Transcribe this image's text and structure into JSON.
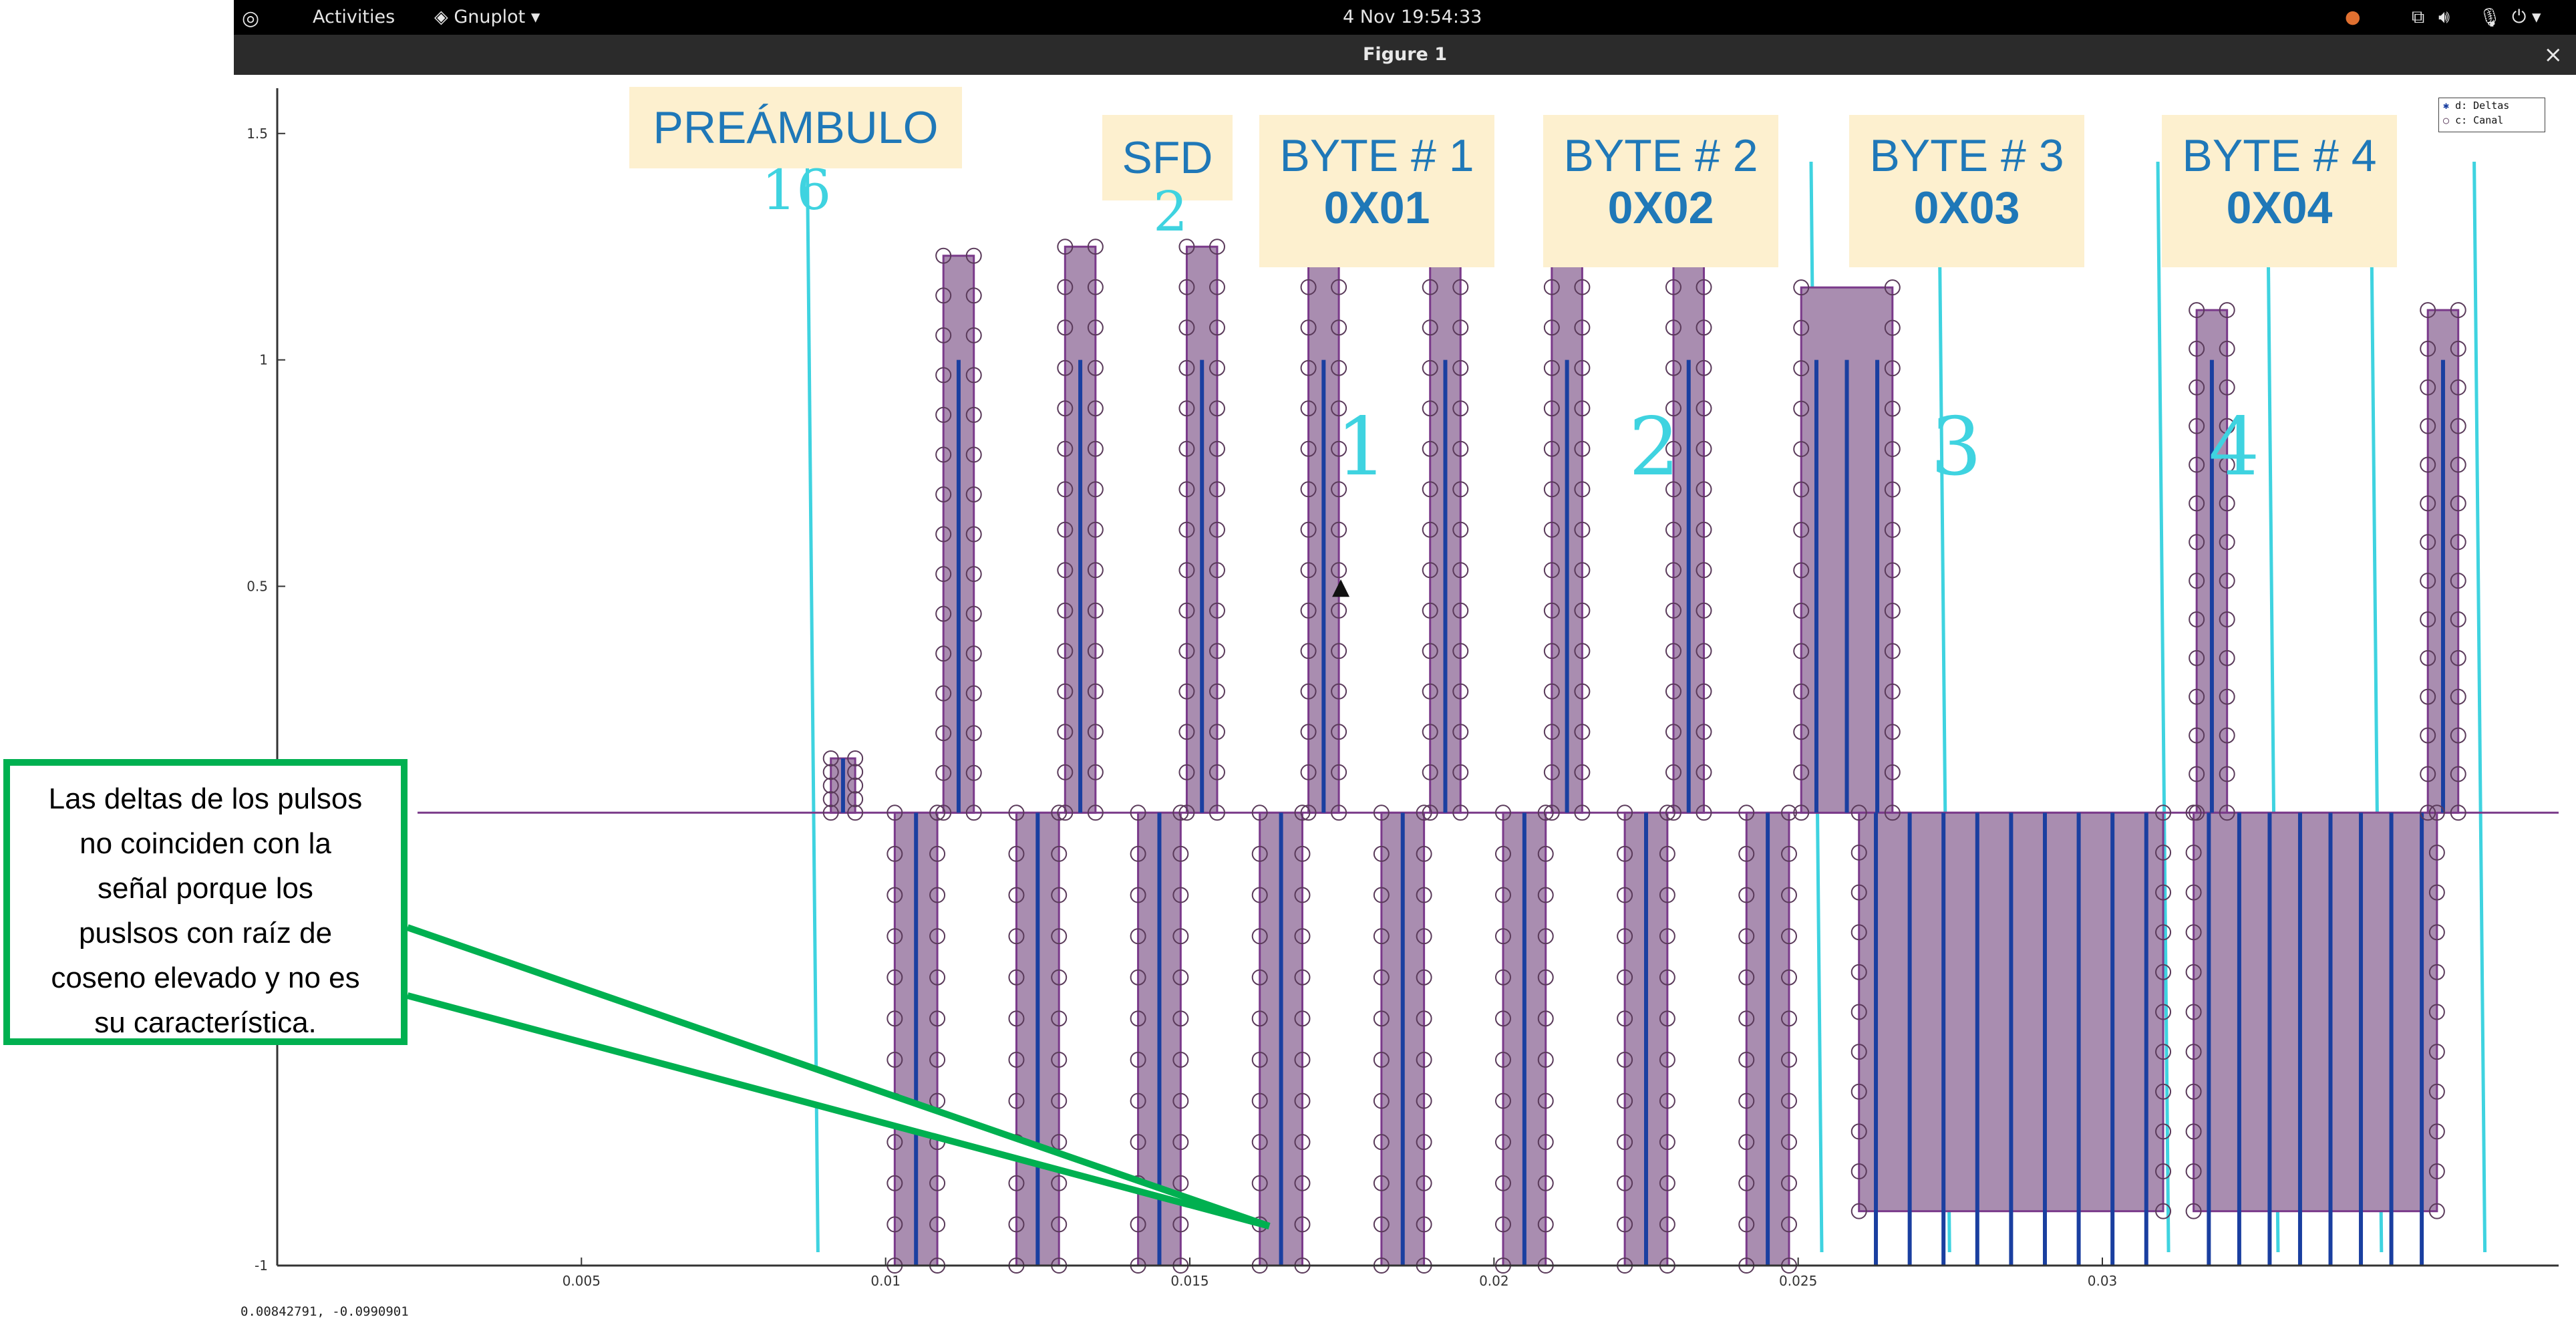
{
  "topbar": {
    "activities": "Activities",
    "app_menu": "Gnuplot",
    "clock": "4 Nov  19:54:33"
  },
  "window": {
    "title": "Figure 1",
    "close": "×"
  },
  "annotations": {
    "preamble": "PREÁMBULO",
    "preamble_count": "16",
    "sfd": "SFD",
    "sfd_count": "2",
    "bytes": [
      {
        "name": "BYTE # 1",
        "value": "0X01",
        "hand": "1"
      },
      {
        "name": "BYTE # 2",
        "value": "0X02",
        "hand": "2"
      },
      {
        "name": "BYTE # 3",
        "value": "0X03",
        "hand": "3"
      },
      {
        "name": "BYTE # 4",
        "value": "0X04",
        "hand": "4"
      }
    ]
  },
  "callout": {
    "text_lines": [
      "Las deltas de los pulsos",
      "no coinciden con la",
      "señal porque los",
      "puslsos con raíz de",
      "coseno elevado y no es",
      "su característica."
    ]
  },
  "legend": {
    "entries": [
      "d: Deltas",
      "c: Canal"
    ]
  },
  "status_coords": "0.00842791, -0.0990901",
  "colors": {
    "fill": "#a98db0",
    "signal": "#7a3a8a",
    "delta": "#1a3fa0",
    "marker": "#5a3a5a",
    "guide": "#3fd3e0",
    "label_bg": "#fdf0cf",
    "label_text": "#1f78b8",
    "callout_border": "#00b050"
  },
  "chart_data": {
    "type": "line",
    "title": "",
    "xlabel": "",
    "ylabel": "",
    "xlim": [
      0.0,
      0.0375
    ],
    "ylim": [
      -1.0,
      1.6
    ],
    "xticks": [
      0.005,
      0.01,
      0.015,
      0.02,
      0.025,
      0.03
    ],
    "xtick_labels": [
      "0.005",
      "0.01",
      "0.015",
      "0.02",
      "0.025",
      "0.03"
    ],
    "yticks": [
      -1,
      0.5,
      1,
      1.5
    ],
    "ytick_labels": [
      "-1",
      "0.5",
      "1",
      "1.5"
    ],
    "pulses": [
      {
        "x": 0.0093,
        "y": 0.12,
        "w": 0.0004
      },
      {
        "x": 0.0105,
        "y": -1.0,
        "w": 0.0007
      },
      {
        "x": 0.0112,
        "y": 1.23,
        "w": 0.0005
      },
      {
        "x": 0.0125,
        "y": -1.0,
        "w": 0.0007
      },
      {
        "x": 0.0132,
        "y": 1.25,
        "w": 0.0005
      },
      {
        "x": 0.0145,
        "y": -1.0,
        "w": 0.0007
      },
      {
        "x": 0.0152,
        "y": 1.25,
        "w": 0.0005
      },
      {
        "x": 0.0165,
        "y": -1.0,
        "w": 0.0007
      },
      {
        "x": 0.0172,
        "y": 1.25,
        "w": 0.0005
      },
      {
        "x": 0.0185,
        "y": -1.0,
        "w": 0.0007
      },
      {
        "x": 0.0192,
        "y": 1.25,
        "w": 0.0005
      },
      {
        "x": 0.0205,
        "y": -1.0,
        "w": 0.0007
      },
      {
        "x": 0.0212,
        "y": 1.25,
        "w": 0.0005
      },
      {
        "x": 0.0225,
        "y": -1.0,
        "w": 0.0007
      },
      {
        "x": 0.0232,
        "y": 1.25,
        "w": 0.0005
      },
      {
        "x": 0.0245,
        "y": -1.0,
        "w": 0.0007
      },
      {
        "x": 0.0258,
        "y": 1.16,
        "w": 0.0015
      },
      {
        "x": 0.0285,
        "y": -0.88,
        "w": 0.005
      },
      {
        "x": 0.0318,
        "y": 1.11,
        "w": 0.0005
      },
      {
        "x": 0.0335,
        "y": -0.88,
        "w": 0.004
      },
      {
        "x": 0.0356,
        "y": 1.11,
        "w": 0.0005
      }
    ]
  }
}
